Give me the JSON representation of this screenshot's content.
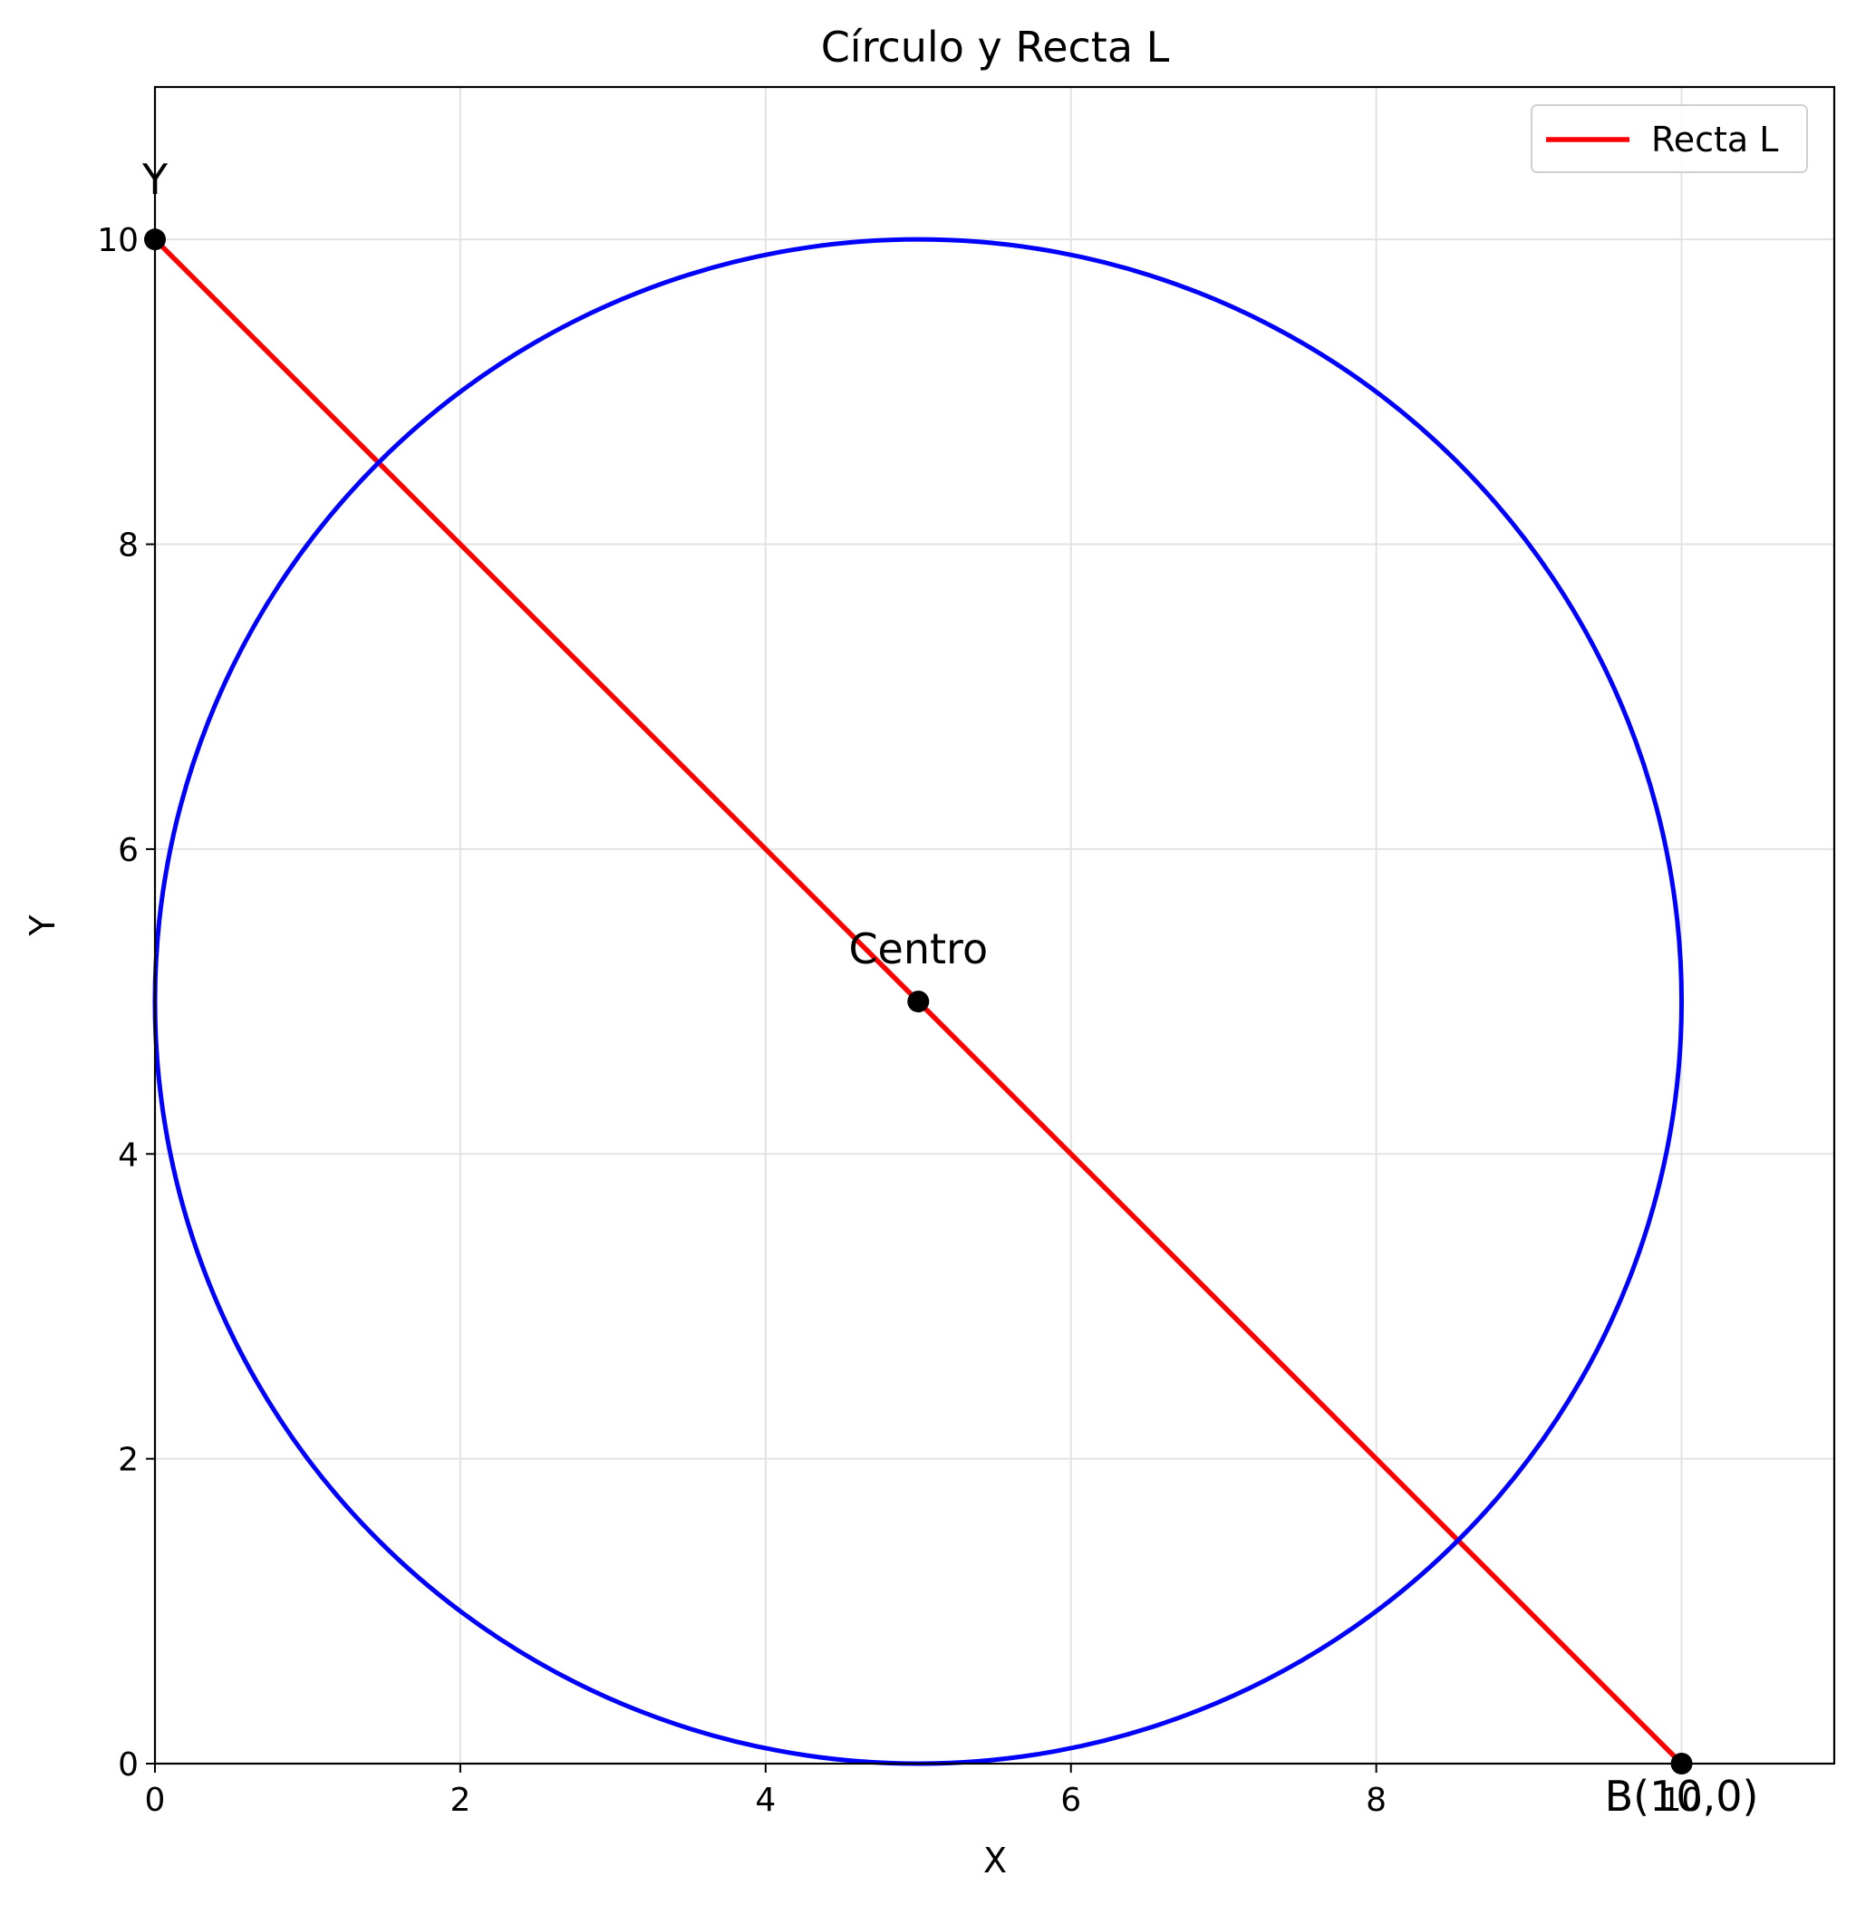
{
  "chart_data": {
    "type": "line",
    "title": "Círculo y Recta L",
    "xlabel": "X",
    "ylabel": "Y",
    "xlim": [
      0,
      11
    ],
    "ylim": [
      0,
      11
    ],
    "xticks": [
      0,
      2,
      4,
      6,
      8,
      10
    ],
    "yticks": [
      0,
      2,
      4,
      6,
      8,
      10
    ],
    "xtick_labels": [
      "0",
      "2",
      "4",
      "6",
      "8",
      "10"
    ],
    "ytick_labels": [
      "0",
      "2",
      "4",
      "6",
      "8",
      "10"
    ],
    "grid": true,
    "legend_position": "top-right",
    "series": [
      {
        "name": "Recta L",
        "kind": "line",
        "color": "#ff0000",
        "x": [
          0,
          10
        ],
        "y": [
          10,
          0
        ]
      },
      {
        "kind": "circle",
        "color": "#0000ff",
        "center": [
          5,
          5
        ],
        "radius": 5
      }
    ],
    "points": [
      {
        "x": 0,
        "y": 10,
        "label": "Y"
      },
      {
        "x": 5,
        "y": 5,
        "label": "Centro"
      },
      {
        "x": 10,
        "y": 0,
        "label": "B(10,0)"
      }
    ]
  }
}
